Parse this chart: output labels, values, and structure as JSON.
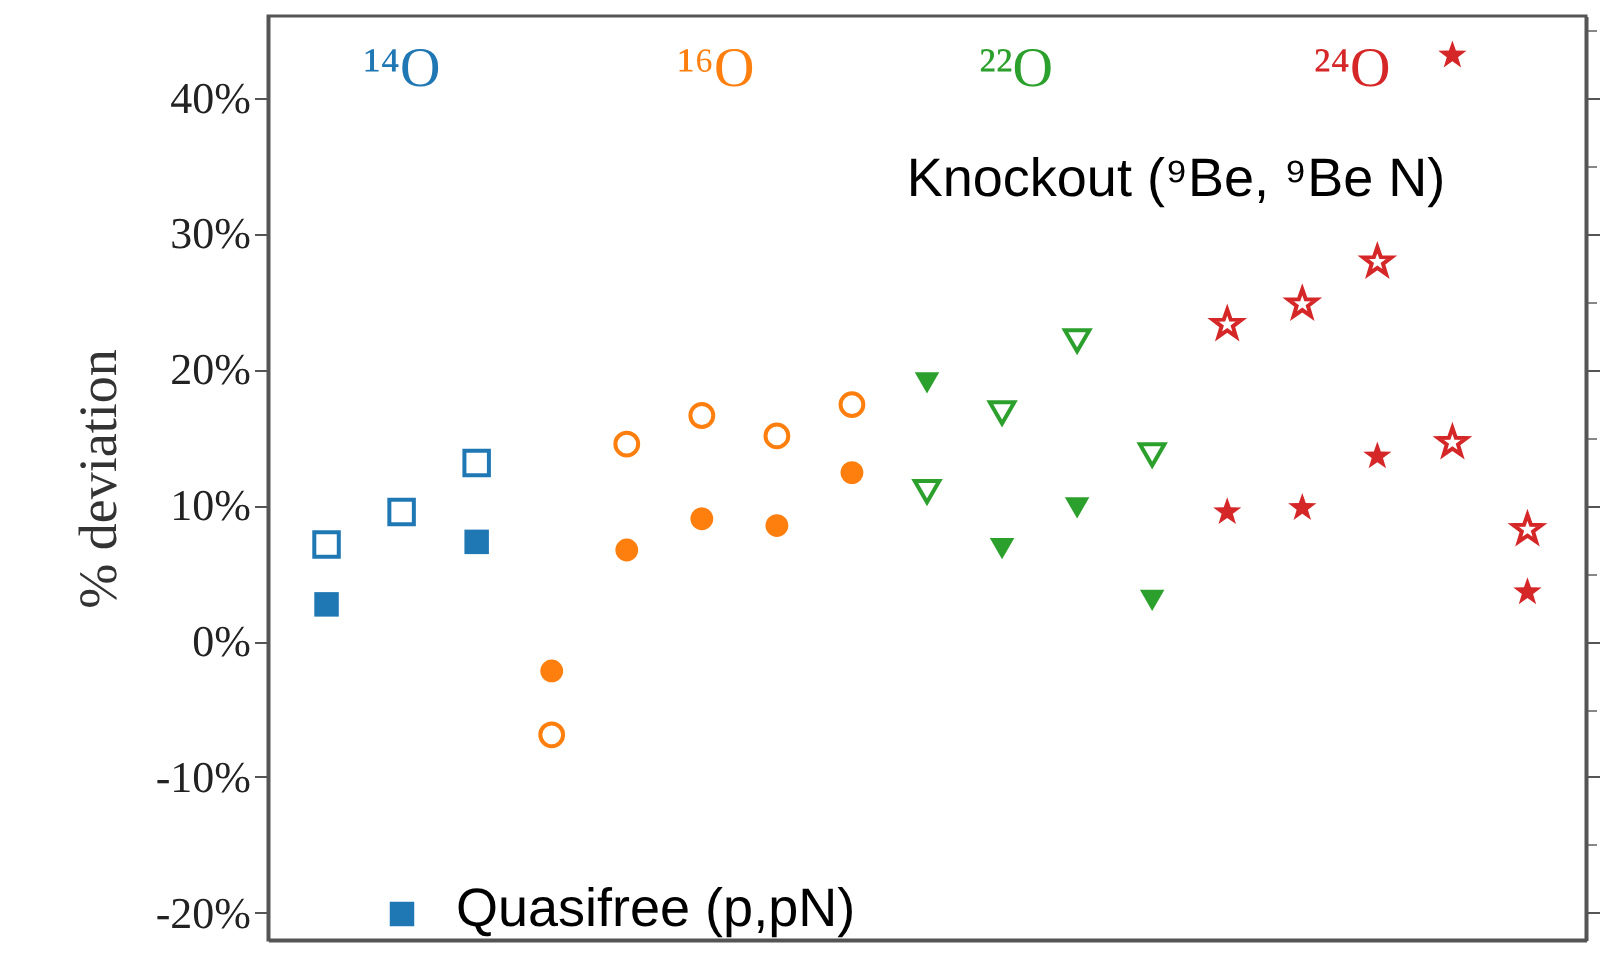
{
  "chart_data": {
    "type": "scatter",
    "ylabel": "% deviation",
    "categories": [
      null,
      null,
      null,
      null,
      null,
      null,
      null,
      null,
      null,
      null,
      null,
      null,
      null,
      null,
      null,
      null,
      null
    ],
    "series": [
      {
        "color": "#1f77b4",
        "marker": "square",
        "values": [
          7.1,
          9.5,
          13.1,
          null,
          null,
          null,
          null,
          null,
          null,
          null,
          null,
          null,
          null,
          null,
          null,
          null,
          null
        ]
      },
      {
        "name": "Quasifree (p,pN)",
        "color": "#1f77b4",
        "marker": "square",
        "values": [
          2.7,
          null,
          7.3,
          null,
          null,
          null,
          null,
          null,
          null,
          null,
          null,
          null,
          null,
          null,
          null,
          null,
          null
        ]
      },
      {
        "color": "#ff7f0e",
        "marker": "circle",
        "values": [
          null,
          null,
          null,
          -6.9,
          14.5,
          16.6,
          15.1,
          17.4,
          null,
          null,
          null,
          null,
          null,
          null,
          null,
          null,
          null
        ]
      },
      {
        "color": "#ff7f0e",
        "marker": "circle",
        "values": [
          null,
          null,
          null,
          -2.2,
          6.7,
          9.0,
          8.5,
          12.4,
          null,
          null,
          null,
          null,
          null,
          null,
          null,
          null,
          null
        ]
      },
      {
        "color": "#2ca02c",
        "marker": "triangle",
        "values": [
          null,
          null,
          null,
          null,
          null,
          null,
          null,
          null,
          11.0,
          16.8,
          22.1,
          13.7,
          null,
          null,
          null,
          null,
          null
        ]
      },
      {
        "color": "#2ca02c",
        "marker": "triangle",
        "values": [
          null,
          null,
          null,
          null,
          null,
          null,
          null,
          null,
          19.0,
          6.8,
          9.8,
          3.0,
          null,
          null,
          null,
          null,
          null
        ]
      },
      {
        "color": "#d62728",
        "marker": "star",
        "values": [
          null,
          null,
          null,
          null,
          null,
          null,
          null,
          null,
          null,
          null,
          null,
          null,
          23.3,
          24.8,
          27.9,
          14.6,
          8.2
        ]
      },
      {
        "color": "#d62728",
        "marker": "star",
        "values": [
          null,
          null,
          null,
          null,
          null,
          null,
          null,
          null,
          null,
          null,
          null,
          null,
          9.5,
          9.8,
          13.6,
          43.1,
          3.6
        ]
      }
    ],
    "ylim": [
      -22,
      46
    ],
    "yticks": [
      {
        "value": -20,
        "label": "-20%"
      },
      {
        "value": -10,
        "label": "-10%"
      },
      {
        "value": 0,
        "label": "0%"
      },
      {
        "value": 10,
        "label": "10%"
      },
      {
        "value": 20,
        "label": "20%"
      },
      {
        "value": 30,
        "label": "30%"
      },
      {
        "value": 40,
        "label": "40%"
      }
    ],
    "tick_labels": "y",
    "grid": false,
    "legend": "bottom left",
    "annotations": [
      "¹⁴O",
      "¹⁶O",
      "²²O",
      "²⁴O",
      "Knockout (⁹Be, ⁹Be N)"
    ]
  }
}
